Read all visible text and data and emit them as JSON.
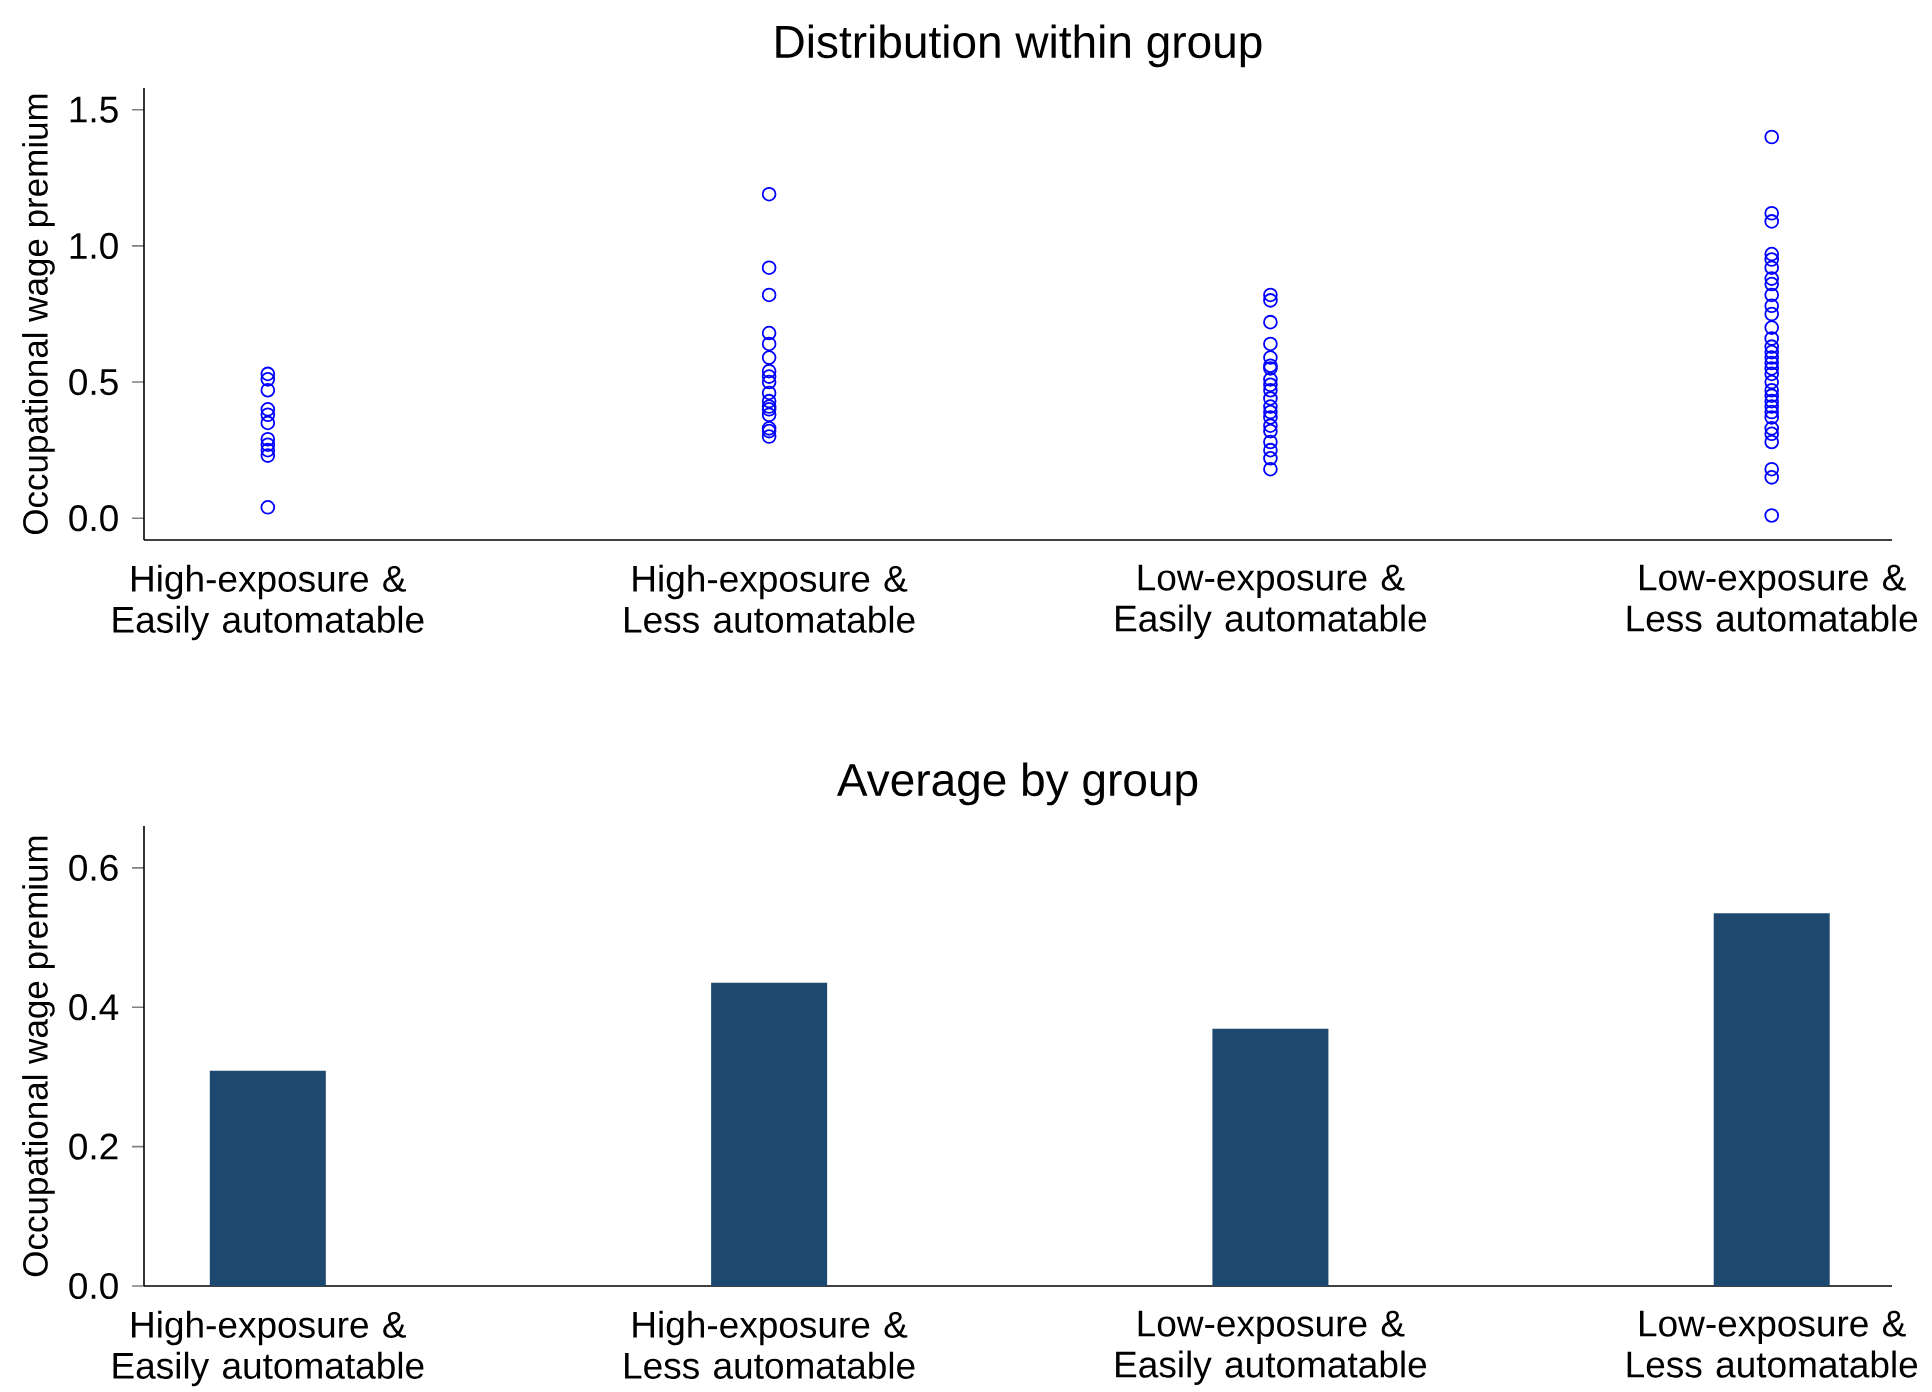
{
  "chart_data": [
    {
      "type": "scatter",
      "title": "Distribution within group",
      "ylabel": "Occupational wage premium",
      "categories": [
        "High-exposure & Easily automatable",
        "High-exposure & Less automatable",
        "Low-exposure & Easily automatable",
        "Low-exposure & Less automatable"
      ],
      "marker": "circle",
      "series": [
        {
          "color": "#0000ff",
          "x": [
            "High-exposure & Easily automatable",
            "High-exposure & Easily automatable",
            "High-exposure & Easily automatable",
            "High-exposure & Easily automatable",
            "High-exposure & Easily automatable",
            "High-exposure & Easily automatable",
            "High-exposure & Easily automatable",
            "High-exposure & Easily automatable",
            "High-exposure & Easily automatable",
            "High-exposure & Easily automatable",
            "High-exposure & Easily automatable"
          ],
          "values": [
            0.53,
            0.51,
            0.47,
            0.4,
            0.38,
            0.35,
            0.29,
            0.27,
            0.25,
            0.23,
            0.04
          ]
        },
        {
          "color": "#0000ff",
          "x": [
            "High-exposure & Less automatable",
            "High-exposure & Less automatable",
            "High-exposure & Less automatable",
            "High-exposure & Less automatable",
            "High-exposure & Less automatable",
            "High-exposure & Less automatable",
            "High-exposure & Less automatable",
            "High-exposure & Less automatable",
            "High-exposure & Less automatable",
            "High-exposure & Less automatable",
            "High-exposure & Less automatable",
            "High-exposure & Less automatable",
            "High-exposure & Less automatable",
            "High-exposure & Less automatable",
            "High-exposure & Less automatable",
            "High-exposure & Less automatable",
            "High-exposure & Less automatable"
          ],
          "values": [
            1.19,
            0.92,
            0.82,
            0.68,
            0.64,
            0.59,
            0.54,
            0.52,
            0.5,
            0.46,
            0.43,
            0.41,
            0.4,
            0.38,
            0.33,
            0.32,
            0.3
          ]
        },
        {
          "color": "#0000ff",
          "x": [
            "Low-exposure & Easily automatable",
            "Low-exposure & Easily automatable",
            "Low-exposure & Easily automatable",
            "Low-exposure & Easily automatable",
            "Low-exposure & Easily automatable",
            "Low-exposure & Easily automatable",
            "Low-exposure & Easily automatable",
            "Low-exposure & Easily automatable",
            "Low-exposure & Easily automatable",
            "Low-exposure & Easily automatable",
            "Low-exposure & Easily automatable",
            "Low-exposure & Easily automatable",
            "Low-exposure & Easily automatable",
            "Low-exposure & Easily automatable",
            "Low-exposure & Easily automatable",
            "Low-exposure & Easily automatable",
            "Low-exposure & Easily automatable",
            "Low-exposure & Easily automatable",
            "Low-exposure & Easily automatable",
            "Low-exposure & Easily automatable"
          ],
          "values": [
            0.82,
            0.8,
            0.72,
            0.64,
            0.59,
            0.56,
            0.55,
            0.51,
            0.49,
            0.47,
            0.44,
            0.41,
            0.39,
            0.37,
            0.34,
            0.32,
            0.28,
            0.25,
            0.22,
            0.18
          ]
        },
        {
          "color": "#0000ff",
          "x": [
            "Low-exposure & Less automatable",
            "Low-exposure & Less automatable",
            "Low-exposure & Less automatable",
            "Low-exposure & Less automatable",
            "Low-exposure & Less automatable",
            "Low-exposure & Less automatable",
            "Low-exposure & Less automatable",
            "Low-exposure & Less automatable",
            "Low-exposure & Less automatable",
            "Low-exposure & Less automatable",
            "Low-exposure & Less automatable",
            "Low-exposure & Less automatable",
            "Low-exposure & Less automatable",
            "Low-exposure & Less automatable",
            "Low-exposure & Less automatable",
            "Low-exposure & Less automatable",
            "Low-exposure & Less automatable",
            "Low-exposure & Less automatable",
            "Low-exposure & Less automatable",
            "Low-exposure & Less automatable",
            "Low-exposure & Less automatable",
            "Low-exposure & Less automatable",
            "Low-exposure & Less automatable",
            "Low-exposure & Less automatable",
            "Low-exposure & Less automatable",
            "Low-exposure & Less automatable",
            "Low-exposure & Less automatable",
            "Low-exposure & Less automatable",
            "Low-exposure & Less automatable",
            "Low-exposure & Less automatable",
            "Low-exposure & Less automatable",
            "Low-exposure & Less automatable"
          ],
          "values": [
            1.4,
            1.12,
            1.09,
            0.97,
            0.95,
            0.92,
            0.88,
            0.86,
            0.82,
            0.78,
            0.75,
            0.7,
            0.66,
            0.63,
            0.61,
            0.59,
            0.57,
            0.55,
            0.53,
            0.5,
            0.47,
            0.45,
            0.43,
            0.41,
            0.39,
            0.37,
            0.33,
            0.31,
            0.28,
            0.18,
            0.15,
            0.01
          ]
        }
      ],
      "ylim": [
        -0.08,
        1.58
      ],
      "yticks": [
        {
          "value": 0,
          "label": "0.0"
        },
        {
          "value": 0.5,
          "label": "0.5"
        },
        {
          "value": 1,
          "label": "1.0"
        },
        {
          "value": 1.5,
          "label": "1.5"
        }
      ]
    },
    {
      "type": "bar",
      "title": "Average by group",
      "ylabel": "Occupational wage premium",
      "categories": [
        "High-exposure & Easily automatable",
        "High-exposure & Less automatable",
        "Low-exposure & Easily automatable",
        "Low-exposure & Less automatable"
      ],
      "values": [
        0.309,
        0.435,
        0.369,
        0.535
      ],
      "color": "#1d4870",
      "ylim": [
        0,
        0.66
      ],
      "yticks": [
        {
          "value": 0,
          "label": "0.0"
        },
        {
          "value": 0.2,
          "label": "0.2"
        },
        {
          "value": 0.4,
          "label": "0.4"
        },
        {
          "value": 0.6,
          "label": "0.6"
        }
      ]
    }
  ]
}
